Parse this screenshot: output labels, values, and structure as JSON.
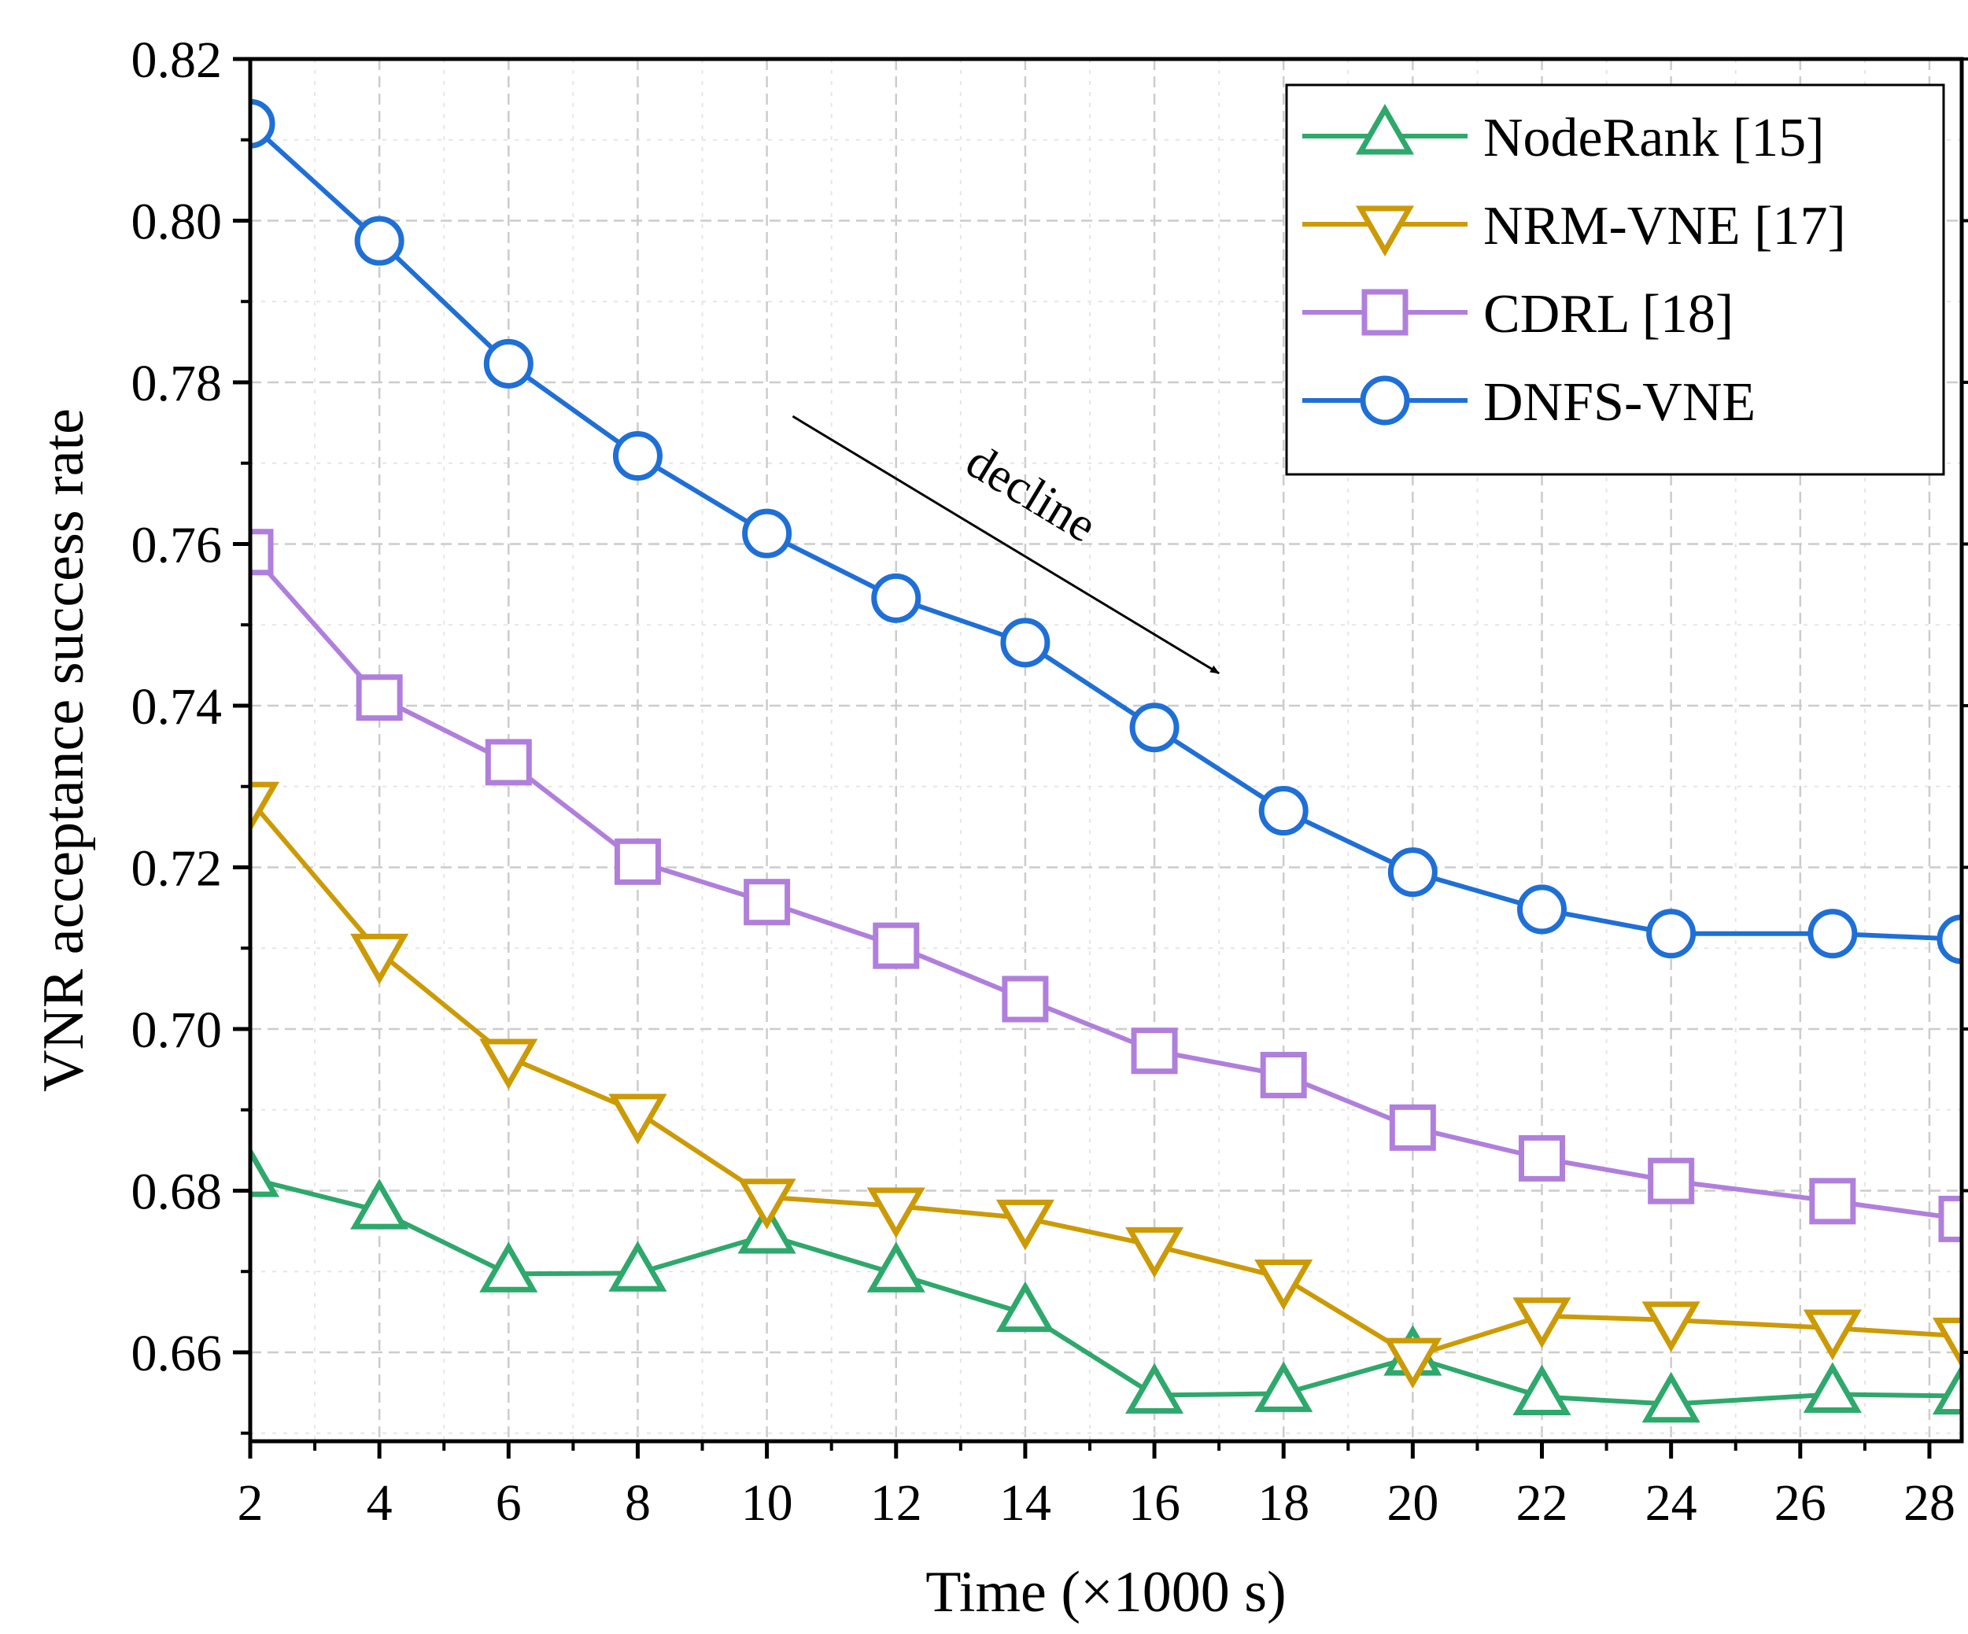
{
  "chart_data": {
    "type": "line",
    "title": "",
    "xlabel": "Time (×1000 s)",
    "ylabel": "VNR acceptance success rate",
    "xlim": [
      2,
      28.5
    ],
    "ylim": [
      0.649,
      0.82
    ],
    "grid": true,
    "legend_position": "top-right",
    "x_ticks": [
      2,
      4,
      6,
      8,
      10,
      12,
      14,
      16,
      18,
      20,
      22,
      24,
      26,
      28
    ],
    "x_tick_labels": [
      "2",
      "4",
      "6",
      "8",
      "10",
      "12",
      "14",
      "16",
      "18",
      "20",
      "22",
      "24",
      "26",
      "28"
    ],
    "y_ticks": [
      0.66,
      0.68,
      0.7,
      0.72,
      0.74,
      0.76,
      0.78,
      0.8,
      0.82
    ],
    "y_tick_labels": [
      "0.66",
      "0.68",
      "0.70",
      "0.72",
      "0.74",
      "0.76",
      "0.78",
      "0.80",
      "0.82"
    ],
    "x": [
      2,
      4,
      6,
      8,
      10,
      12,
      14,
      16,
      18,
      20,
      22,
      24,
      26.5,
      28.5
    ],
    "series": [
      {
        "name": "NodeRank [15]",
        "marker": "triangle-up",
        "color": "#2ea86b",
        "values": [
          0.6815,
          0.6775,
          0.6697,
          0.6698,
          0.6745,
          0.6697,
          0.6648,
          0.6547,
          0.6549,
          0.6594,
          0.6545,
          0.6536,
          0.6548,
          0.6546
        ]
      },
      {
        "name": "NRM-VNE [17]",
        "marker": "triangle-down",
        "color": "#cc9a06",
        "values": [
          0.7283,
          0.7095,
          0.6965,
          0.6897,
          0.6792,
          0.6781,
          0.6766,
          0.6732,
          0.6692,
          0.6595,
          0.6645,
          0.664,
          0.663,
          0.662
        ]
      },
      {
        "name": "CDRL [18]",
        "marker": "square",
        "color": "#b07fdc",
        "values": [
          0.759,
          0.741,
          0.733,
          0.7207,
          0.7157,
          0.7103,
          0.7037,
          0.6973,
          0.6943,
          0.6878,
          0.684,
          0.6812,
          0.6787,
          0.6765
        ]
      },
      {
        "name": "DNFS-VNE",
        "marker": "circle",
        "color": "#1f6fd6",
        "values": [
          0.812,
          0.7975,
          0.7823,
          0.7709,
          0.7613,
          0.7533,
          0.7478,
          0.7373,
          0.727,
          0.7194,
          0.7148,
          0.7118,
          0.7118,
          0.7111
        ]
      }
    ],
    "annotations": [
      {
        "text": "decline",
        "from": [
          10.4,
          0.7758
        ],
        "to": [
          17.0,
          0.744
        ]
      }
    ]
  }
}
